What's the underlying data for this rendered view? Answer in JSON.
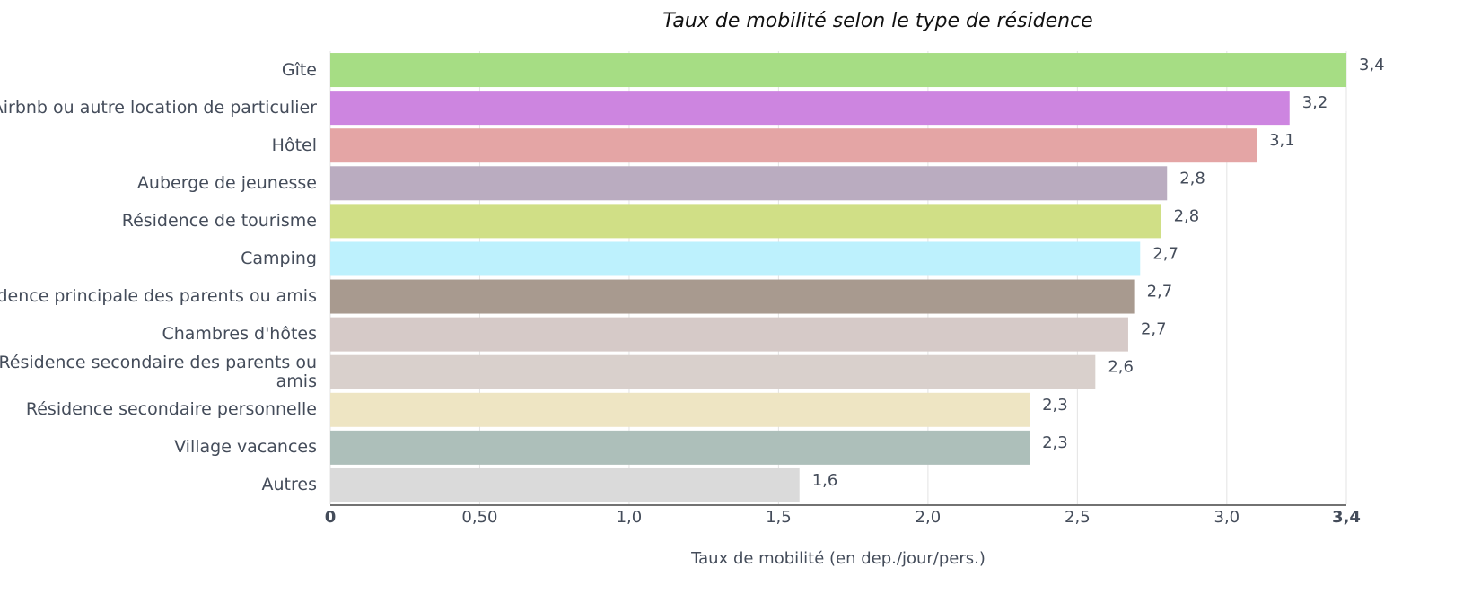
{
  "chart_data": {
    "type": "barh",
    "title": "Taux de mobilité selon le type de résidence",
    "x_label": "Taux de mobilité (en dep./jour/pers.)",
    "categories": [
      "Gîte",
      "Airbnb ou autre location de particulier",
      "Hôtel",
      "Auberge de jeunesse",
      "Résidence de tourisme",
      "Camping",
      "Résidence principale des parents ou amis",
      "Chambres d'hôtes",
      "Résidence secondaire des parents ou amis",
      "Résidence secondaire personnelle",
      "Village vacances",
      "Autres"
    ],
    "values": [
      3.4,
      3.21,
      3.1,
      2.8,
      2.78,
      2.71,
      2.69,
      2.67,
      2.56,
      2.34,
      2.34,
      1.57
    ],
    "value_labels": [
      "3,4",
      "3,2",
      "3,1",
      "2,8",
      "2,8",
      "2,7",
      "2,7",
      "2,7",
      "2,6",
      "2,3",
      "2,3",
      "1,6"
    ],
    "colors": [
      "#a6dd84",
      "#cd85e0",
      "#e4a5a5",
      "#baacc0",
      "#d0df86",
      "#bdf1fd",
      "#a89a8f",
      "#d6cac8",
      "#d9d0cc",
      "#eee5c3",
      "#adbfba",
      "#dadada"
    ],
    "xlim": [
      0,
      3.4
    ],
    "xticks": [
      0,
      {
        "value": 0.5,
        "label": "0,50"
      },
      {
        "value": 1,
        "label": "1,0"
      },
      {
        "value": 1.5,
        "label": "1,5"
      },
      {
        "value": 2,
        "label": "2,0"
      },
      {
        "value": 2.5,
        "label": "2,5"
      },
      {
        "value": 3,
        "label": "3,0"
      },
      {
        "value": 3.4,
        "label": "3,4"
      }
    ],
    "grid": true
  }
}
